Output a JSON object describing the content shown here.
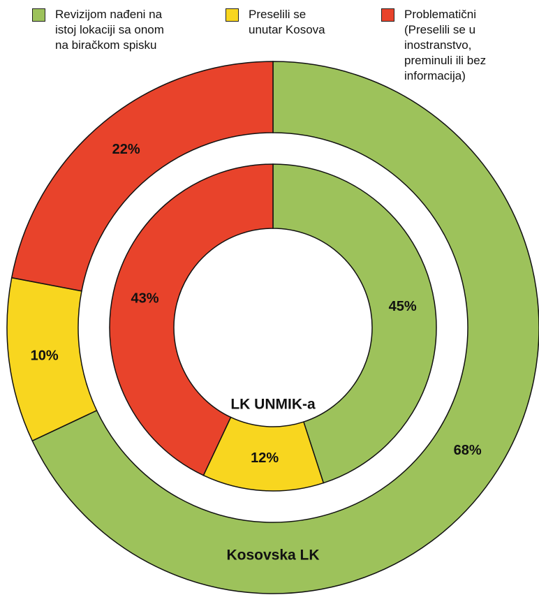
{
  "chart_data": {
    "type": "donut",
    "categories": [
      "Revizijom nađeni na\nistoj lokaciji sa onom\nna biračkom spisku",
      "Preselili se\nunutar Kosova",
      "Problematični\n(Preselili se u\ninostranstvo,\npreminuli ili bez\ninformacija)"
    ],
    "colors": [
      "#9dc25b",
      "#f8d61f",
      "#e8432b"
    ],
    "series": [
      {
        "name": "Kosovska LK",
        "values": [
          68,
          10,
          22
        ],
        "value_labels": [
          "68%",
          "10%",
          "22%"
        ]
      },
      {
        "name": "LK UNMIK-a",
        "values": [
          45,
          12,
          43
        ],
        "value_labels": [
          "45%",
          "12%",
          "43%"
        ]
      }
    ]
  }
}
